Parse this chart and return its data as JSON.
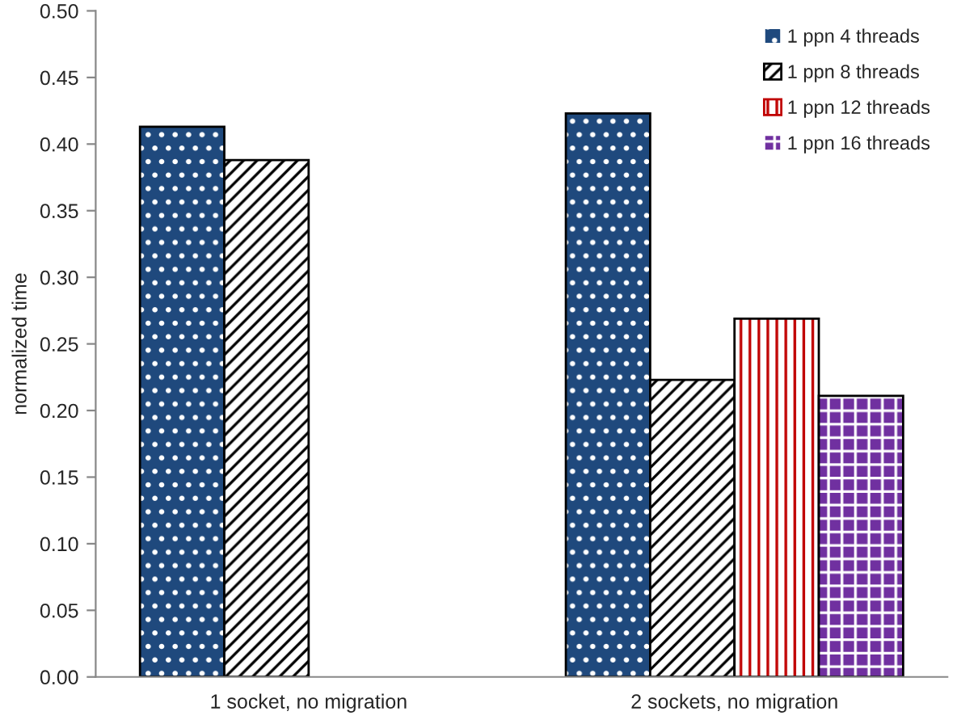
{
  "chart_data": {
    "type": "bar",
    "ylabel": "normalized time",
    "categories": [
      "1 socket, no migration",
      "2 sockets, no migration"
    ],
    "series": [
      {
        "name": "1 ppn 4 threads",
        "color": "#1f497d",
        "values": [
          0.413,
          0.423
        ]
      },
      {
        "name": "1 ppn 8 threads",
        "color": "#000000",
        "values": [
          0.388,
          0.223
        ]
      },
      {
        "name": "1 ppn 12 threads",
        "color": "#c00000",
        "values": [
          null,
          0.269
        ]
      },
      {
        "name": "1 ppn 16 threads",
        "color": "#7030a0",
        "values": [
          null,
          0.211
        ]
      }
    ],
    "ylim": [
      0,
      0.5
    ],
    "yticks": [
      {
        "value": 0,
        "label": "0.00"
      },
      {
        "value": 0.05,
        "label": "0.05"
      },
      {
        "value": 0.1,
        "label": "0.10"
      },
      {
        "value": 0.15,
        "label": "0.15"
      },
      {
        "value": 0.2,
        "label": "0.20"
      },
      {
        "value": 0.25,
        "label": "0.25"
      },
      {
        "value": 0.3,
        "label": "0.30"
      },
      {
        "value": 0.35,
        "label": "0.35"
      },
      {
        "value": 0.4,
        "label": "0.40"
      },
      {
        "value": 0.45,
        "label": "0.45"
      },
      {
        "value": 0.5,
        "label": "0.50"
      }
    ],
    "grid": false,
    "legend": "top right"
  }
}
